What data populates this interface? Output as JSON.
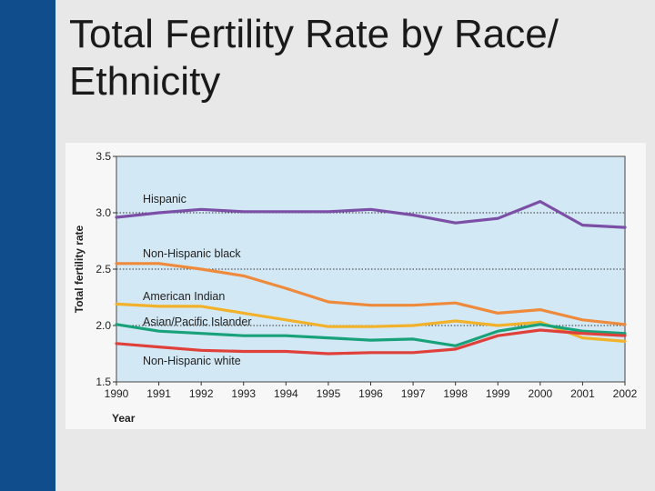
{
  "slide": {
    "title": "Total Fertility Rate by Race/ Ethnicity"
  },
  "colors": {
    "sidebar": "#0f4d8c",
    "plot_background": "#d3e8f5"
  },
  "chart_data": {
    "type": "line",
    "title": "",
    "xlabel": "Year",
    "ylabel": "Total fertility rate",
    "x": [
      1990,
      1991,
      1992,
      1993,
      1994,
      1995,
      1996,
      1997,
      1998,
      1999,
      2000,
      2001,
      2002
    ],
    "xlim": [
      1990,
      2002
    ],
    "ylim": [
      1.5,
      3.5
    ],
    "yticks": [
      "1.5",
      "2.0",
      "2.5",
      "3.0",
      "3.5"
    ],
    "xticks": [
      "1990",
      "1991",
      "1992",
      "1993",
      "1994",
      "1995",
      "1996",
      "1997",
      "1998",
      "1999",
      "2000",
      "2001",
      "2002"
    ],
    "dotted_gridlines_at": [
      2.0,
      2.5,
      3.0
    ],
    "series": [
      {
        "name": "Hispanic",
        "color": "#7b4fa6",
        "values": [
          2.96,
          3.0,
          3.03,
          3.01,
          3.01,
          3.01,
          3.03,
          2.98,
          2.91,
          2.95,
          3.1,
          2.89,
          2.87
        ]
      },
      {
        "name": "Non-Hispanic black",
        "color": "#ee8a3c",
        "values": [
          2.55,
          2.55,
          2.5,
          2.44,
          2.33,
          2.21,
          2.18,
          2.18,
          2.2,
          2.11,
          2.14,
          2.05,
          2.01
        ]
      },
      {
        "name": "American Indian",
        "color": "#f2b12a",
        "values": [
          2.19,
          2.17,
          2.17,
          2.11,
          2.05,
          1.99,
          1.99,
          2.0,
          2.04,
          2.0,
          2.03,
          1.89,
          1.86
        ]
      },
      {
        "name": "Asian/Pacific Islander",
        "color": "#19a27a",
        "values": [
          2.01,
          1.95,
          1.93,
          1.91,
          1.91,
          1.89,
          1.87,
          1.88,
          1.82,
          1.95,
          2.01,
          1.95,
          1.93
        ]
      },
      {
        "name": "Non-Hispanic white",
        "color": "#e0403a",
        "values": [
          1.84,
          1.81,
          1.78,
          1.77,
          1.77,
          1.75,
          1.76,
          1.76,
          1.79,
          1.91,
          1.96,
          1.93,
          1.91
        ]
      }
    ]
  }
}
